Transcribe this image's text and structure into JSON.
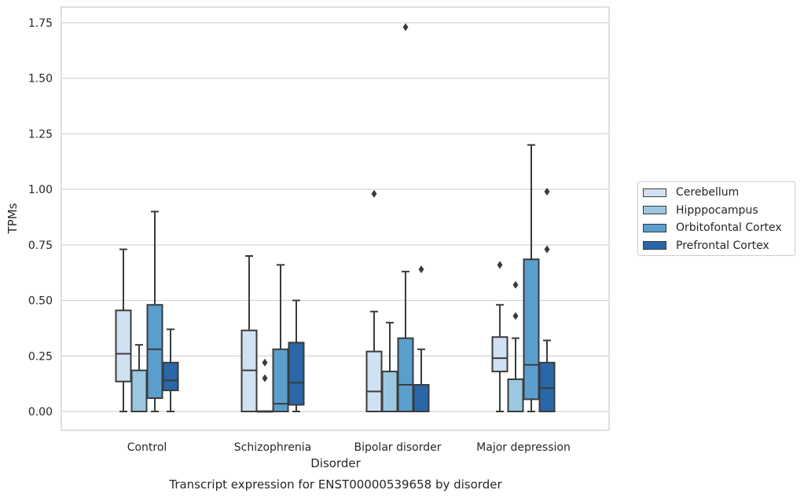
{
  "chart_data": {
    "type": "box",
    "title": "Transcript expression for ENST00000539658 by disorder",
    "xlabel": "Disorder",
    "ylabel": "TPMs",
    "ylim": [
      -0.08,
      1.82
    ],
    "yticks": [
      "0.00",
      "0.25",
      "0.50",
      "0.75",
      "1.00",
      "1.25",
      "1.50",
      "1.75"
    ],
    "ytick_values": [
      0,
      0.25,
      0.5,
      0.75,
      1.0,
      1.25,
      1.5,
      1.75
    ],
    "grid": true,
    "legend_position": "right",
    "categories": [
      "Control",
      "Schizophrenia",
      "Bipolar disorder",
      "Major depression"
    ],
    "series": [
      {
        "name": "Cerebellum",
        "color": "#d0e1f2",
        "boxes": [
          {
            "q1": 0.135,
            "median": 0.26,
            "q3": 0.455,
            "whisker_low": 0.0,
            "whisker_high": 0.73,
            "outliers": []
          },
          {
            "q1": 0.0,
            "median": 0.185,
            "q3": 0.365,
            "whisker_low": 0.0,
            "whisker_high": 0.7,
            "outliers": []
          },
          {
            "q1": 0.0,
            "median": 0.09,
            "q3": 0.27,
            "whisker_low": 0.0,
            "whisker_high": 0.45,
            "outliers": [
              0.98
            ]
          },
          {
            "q1": 0.18,
            "median": 0.24,
            "q3": 0.335,
            "whisker_low": 0.0,
            "whisker_high": 0.48,
            "outliers": [
              0.66
            ]
          }
        ]
      },
      {
        "name": "Hipppocampus",
        "color": "#9ac8e0",
        "boxes": [
          {
            "q1": 0.0,
            "median": 0.0,
            "q3": 0.185,
            "whisker_low": 0.0,
            "whisker_high": 0.3,
            "outliers": []
          },
          {
            "q1": 0.0,
            "median": 0.0,
            "q3": 0.0,
            "whisker_low": 0.0,
            "whisker_high": 0.0,
            "outliers": [
              0.15,
              0.22
            ]
          },
          {
            "q1": 0.0,
            "median": 0.0,
            "q3": 0.18,
            "whisker_low": 0.0,
            "whisker_high": 0.4,
            "outliers": []
          },
          {
            "q1": 0.0,
            "median": 0.0,
            "q3": 0.145,
            "whisker_low": 0.0,
            "whisker_high": 0.33,
            "outliers": [
              0.43,
              0.57
            ]
          }
        ]
      },
      {
        "name": "Orbitofontal Cortex",
        "color": "#5a9ecd",
        "boxes": [
          {
            "q1": 0.06,
            "median": 0.28,
            "q3": 0.48,
            "whisker_low": 0.0,
            "whisker_high": 0.9,
            "outliers": []
          },
          {
            "q1": 0.0,
            "median": 0.035,
            "q3": 0.28,
            "whisker_low": 0.0,
            "whisker_high": 0.66,
            "outliers": []
          },
          {
            "q1": 0.0,
            "median": 0.12,
            "q3": 0.33,
            "whisker_low": 0.0,
            "whisker_high": 0.63,
            "outliers": [
              1.73
            ]
          },
          {
            "q1": 0.055,
            "median": 0.21,
            "q3": 0.685,
            "whisker_low": 0.0,
            "whisker_high": 1.2,
            "outliers": []
          }
        ]
      },
      {
        "name": "Prefrontal Cortex",
        "color": "#2967a8",
        "boxes": [
          {
            "q1": 0.095,
            "median": 0.14,
            "q3": 0.22,
            "whisker_low": 0.0,
            "whisker_high": 0.37,
            "outliers": []
          },
          {
            "q1": 0.03,
            "median": 0.13,
            "q3": 0.31,
            "whisker_low": 0.0,
            "whisker_high": 0.5,
            "outliers": []
          },
          {
            "q1": 0.0,
            "median": 0.0,
            "q3": 0.12,
            "whisker_low": 0.0,
            "whisker_high": 0.28,
            "outliers": [
              0.64
            ]
          },
          {
            "q1": 0.0,
            "median": 0.105,
            "q3": 0.22,
            "whisker_low": 0.0,
            "whisker_high": 0.32,
            "outliers": [
              0.73,
              0.99
            ]
          }
        ]
      }
    ]
  }
}
